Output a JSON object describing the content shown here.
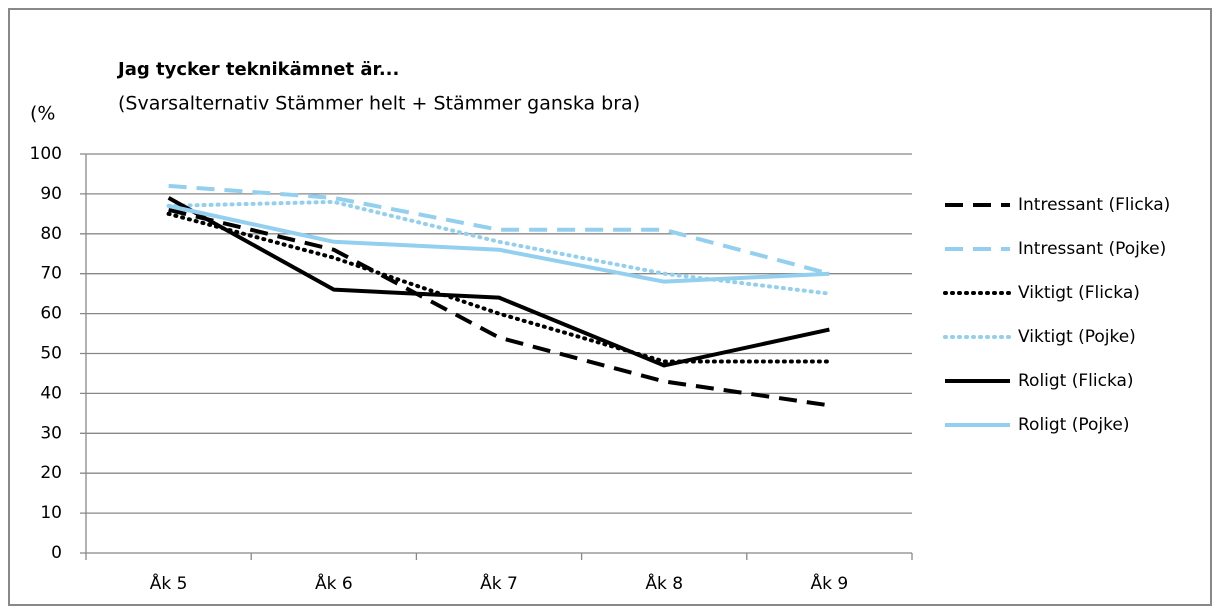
{
  "chart_data": {
    "type": "line",
    "title": "Jag tycker  teknikämnet är...",
    "subtitle": "(Svarsalternativ Stämmer helt + Stämmer ganska bra)",
    "y_label": "(%",
    "categories": [
      "Åk 5",
      "Åk 6",
      "Åk 7",
      "Åk 8",
      "Åk 9"
    ],
    "series": [
      {
        "name": "Intressant (Flicka)",
        "color": "#000000",
        "dash": "dashed",
        "values": [
          86,
          76,
          54,
          43,
          37
        ]
      },
      {
        "name": "Intressant (Pojke)",
        "color": "#93cfee",
        "dash": "dashed",
        "values": [
          92,
          89,
          81,
          81,
          70
        ]
      },
      {
        "name": "Viktigt (Flicka)",
        "color": "#000000",
        "dash": "dotted",
        "values": [
          85,
          74,
          60,
          48,
          48
        ]
      },
      {
        "name": "Viktigt (Pojke)",
        "color": "#93cfee",
        "dash": "dotted",
        "values": [
          87,
          88,
          78,
          70,
          65
        ]
      },
      {
        "name": "Roligt (Flicka)",
        "color": "#000000",
        "dash": "solid",
        "values": [
          89,
          66,
          64,
          47,
          56
        ]
      },
      {
        "name": "Roligt (Pojke)",
        "color": "#93cfee",
        "dash": "solid",
        "values": [
          87,
          78,
          76,
          68,
          70
        ]
      }
    ],
    "ylim": [
      0,
      100
    ],
    "yticks": [
      0,
      10,
      20,
      30,
      40,
      50,
      60,
      70,
      80,
      90,
      100
    ],
    "grid": true,
    "legend": "right"
  }
}
